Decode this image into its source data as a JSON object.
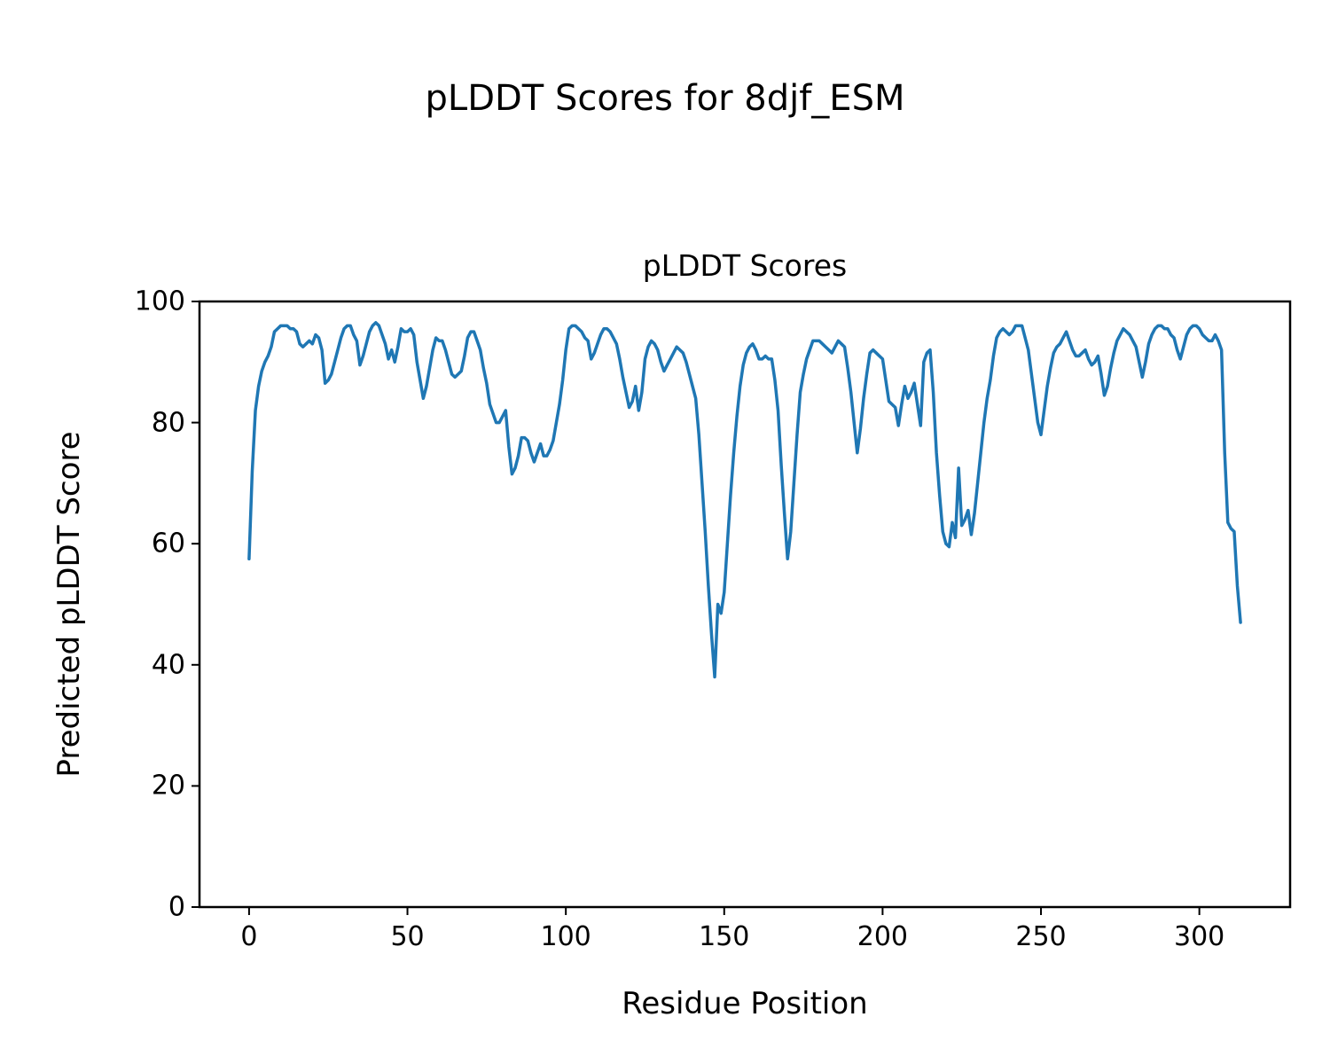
{
  "figure": {
    "suptitle": "pLDDT Scores for 8djf_ESM",
    "background_color": "#ffffff",
    "text_color": "#000000"
  },
  "chart_data": {
    "type": "line",
    "title": "pLDDT Scores",
    "xlabel": "Residue Position",
    "ylabel": "Predicted pLDDT Score",
    "line_color": "#1f77b4",
    "line_width": 3.5,
    "grid": false,
    "legend": "none",
    "xlim": [
      -15.65,
      328.65
    ],
    "ylim": [
      0,
      100
    ],
    "xticks": [
      0,
      50,
      100,
      150,
      200,
      250,
      300
    ],
    "yticks": [
      0,
      20,
      40,
      60,
      80,
      100
    ],
    "series": [
      {
        "name": "pLDDT",
        "x_start": 0,
        "x_step": 1,
        "y": [
          57.5,
          72,
          82,
          86,
          88.5,
          90,
          91,
          92.5,
          95,
          95.5,
          96,
          96,
          96,
          95.5,
          95.5,
          95,
          93,
          92.5,
          93,
          93.5,
          93,
          94.5,
          94,
          92,
          86.5,
          87,
          88,
          90,
          92,
          94,
          95.5,
          96,
          96,
          94.5,
          93.5,
          89.5,
          91,
          93,
          95,
          96,
          96.5,
          96,
          94.5,
          93,
          90.5,
          92,
          90,
          92.5,
          95.5,
          95,
          95,
          95.5,
          94.5,
          90,
          87,
          84,
          86,
          89,
          92,
          94,
          93.5,
          93.5,
          92,
          90,
          88,
          87.5,
          88,
          88.5,
          91,
          94,
          95,
          95,
          93.5,
          92,
          89,
          86.5,
          83,
          81.5,
          80,
          80,
          81,
          82,
          76,
          71.5,
          72.5,
          74.5,
          77.5,
          77.5,
          77,
          75,
          73.5,
          75,
          76.5,
          74.5,
          74.5,
          75.5,
          77,
          80,
          83,
          87,
          92,
          95.5,
          96,
          96,
          95.5,
          95,
          94,
          93.5,
          90.5,
          91.5,
          93,
          94.5,
          95.5,
          95.5,
          95,
          94,
          93,
          90.5,
          87.5,
          85,
          82.5,
          83.5,
          86,
          82,
          85,
          90.5,
          92.5,
          93.5,
          93,
          92,
          90,
          88.5,
          89.5,
          90.5,
          91.5,
          92.5,
          92,
          91.5,
          90,
          88,
          86,
          84,
          78,
          70,
          62,
          53,
          45,
          38,
          50,
          48.5,
          52,
          60,
          68,
          75,
          81,
          86,
          89.5,
          91.5,
          92.5,
          93,
          92,
          90.5,
          90.5,
          91,
          90.5,
          90.5,
          87,
          82,
          73,
          65,
          57.5,
          62,
          70,
          78,
          85,
          88,
          90.5,
          92,
          93.5,
          93.5,
          93.5,
          93,
          92.5,
          92,
          91.5,
          92.5,
          93.5,
          93,
          92.5,
          89,
          85,
          80,
          75,
          79,
          84,
          88,
          91.5,
          92,
          91.5,
          91,
          90.5,
          87,
          83.5,
          83,
          82.5,
          79.5,
          83,
          86,
          84,
          85,
          86.5,
          83,
          79.5,
          90,
          91.5,
          92,
          85,
          75,
          68,
          62,
          60,
          59.5,
          63.5,
          61,
          72.5,
          63,
          64,
          65.5,
          61.5,
          65,
          70,
          75,
          80,
          84,
          87,
          91,
          94,
          95,
          95.5,
          95,
          94.5,
          95,
          96,
          96,
          96,
          94,
          92,
          88,
          84,
          80,
          78,
          82,
          86,
          89,
          91.5,
          92.5,
          93,
          94,
          95,
          93.5,
          92,
          91,
          91,
          91.5,
          92,
          90.5,
          89.5,
          90,
          91,
          88,
          84.5,
          86,
          89,
          91.5,
          93.5,
          94.5,
          95.5,
          95,
          94.5,
          93.5,
          92.5,
          90,
          87.5,
          90,
          93,
          94.5,
          95.5,
          96,
          96,
          95.5,
          95.5,
          94.5,
          94,
          92,
          90.5,
          92.5,
          94.5,
          95.5,
          96,
          96,
          95.5,
          94.5,
          94,
          93.5,
          93.5,
          94.5,
          93.5,
          92,
          75,
          63.5,
          62.5,
          62,
          53,
          47
        ]
      }
    ]
  }
}
